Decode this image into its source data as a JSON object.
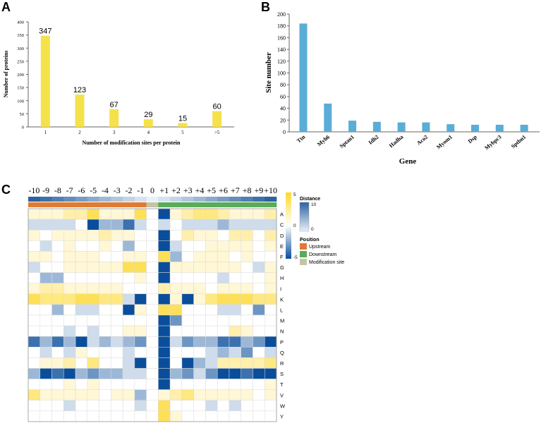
{
  "panels": {
    "a_letter": "A",
    "b_letter": "B",
    "c_letter": "C"
  },
  "chart_data": [
    {
      "type": "bar",
      "panel": "A",
      "title": "",
      "xlabel": "Number of modification sites per protein",
      "ylabel": "Number of proteins",
      "categories": [
        "1",
        "2",
        "3",
        "4",
        "5",
        ">5"
      ],
      "values": [
        347,
        123,
        67,
        29,
        15,
        60
      ],
      "ylim": [
        0,
        400
      ],
      "yticks": [
        0,
        50,
        100,
        150,
        200,
        250,
        300,
        350,
        400
      ],
      "data_labels": true,
      "grid": false,
      "color": "#f5e14a"
    },
    {
      "type": "bar",
      "panel": "B",
      "title": "",
      "xlabel": "Gene",
      "ylabel": "Site number",
      "categories": [
        "Ttn",
        "Myh6",
        "Sptan1",
        "Idh2",
        "Hadha",
        "Aco2",
        "Myom1",
        "Dsp",
        "Mybpc3",
        "Sptbn1"
      ],
      "values": [
        184,
        48,
        19,
        17,
        16,
        16,
        13,
        12,
        12,
        12
      ],
      "ylim": [
        0,
        200
      ],
      "yticks": [
        0,
        20,
        40,
        60,
        80,
        100,
        120,
        140,
        160,
        180,
        200
      ],
      "grid": false,
      "color": "#5aadd6"
    },
    {
      "type": "heatmap",
      "panel": "C",
      "columns": [
        "-10",
        "-9",
        "-8",
        "-7",
        "-6",
        "-5",
        "-4",
        "-3",
        "-2",
        "-1",
        "0",
        "+1",
        "+2",
        "+3",
        "+4",
        "+5",
        "+6",
        "+7",
        "+8",
        "+9",
        "+10"
      ],
      "rows": [
        "A",
        "C",
        "D",
        "E",
        "F",
        "G",
        "H",
        "I",
        "K",
        "L",
        "M",
        "N",
        "P",
        "Q",
        "R",
        "S",
        "T",
        "V",
        "W",
        "Y"
      ],
      "values": [
        [
          1,
          1,
          1,
          2,
          2,
          4,
          1,
          1,
          1,
          4,
          0,
          -5,
          1,
          2,
          3,
          3,
          2,
          1,
          1,
          1,
          2
        ],
        [
          -1,
          -1,
          -1,
          -1,
          0,
          -5,
          -2,
          -2,
          -4,
          -1,
          0,
          -1,
          0,
          -1,
          -1,
          -1,
          -2,
          -1,
          -1,
          -1,
          -1
        ],
        [
          1,
          0,
          1,
          1,
          1,
          1,
          2,
          1,
          1,
          0,
          0,
          -5,
          0,
          2,
          1,
          1,
          0,
          2,
          2,
          0,
          2
        ],
        [
          0,
          -1,
          0,
          1,
          0,
          0,
          1,
          0,
          -2,
          0,
          0,
          -5,
          -1,
          0,
          0,
          1,
          1,
          1,
          1,
          0,
          1
        ],
        [
          1,
          1,
          0,
          1,
          1,
          1,
          0,
          0,
          1,
          1,
          0,
          4,
          -2,
          0,
          1,
          1,
          1,
          0,
          1,
          0,
          0
        ],
        [
          -1,
          0,
          0,
          1,
          1,
          1,
          1,
          1,
          4,
          4,
          0,
          -5,
          1,
          1,
          1,
          1,
          1,
          1,
          0,
          -1,
          1
        ],
        [
          0,
          -2,
          -2,
          0,
          0,
          0,
          0,
          0,
          0,
          1,
          0,
          -5,
          0,
          0,
          0,
          0,
          -1,
          0,
          0,
          0,
          1
        ],
        [
          1,
          2,
          2,
          1,
          1,
          1,
          1,
          1,
          0,
          0,
          0,
          2,
          1,
          1,
          1,
          0,
          1,
          1,
          1,
          0,
          1
        ],
        [
          4,
          3,
          3,
          3,
          4,
          4,
          3,
          3,
          -1,
          -5,
          0,
          -5,
          1,
          -5,
          1,
          3,
          4,
          4,
          4,
          3,
          3
        ],
        [
          0,
          0,
          -2,
          0,
          -1,
          -1,
          0,
          0,
          -5,
          1,
          0,
          4,
          4,
          0,
          0,
          0,
          -1,
          -1,
          0,
          -3,
          0
        ],
        [
          0,
          0,
          0,
          0,
          0,
          0,
          0,
          0,
          0,
          0,
          0,
          -5,
          -3,
          0,
          0,
          0,
          0,
          0,
          0,
          0,
          0
        ],
        [
          0,
          0,
          0,
          -1,
          0,
          -1,
          0,
          0,
          1,
          1,
          0,
          -5,
          0,
          0,
          0,
          0,
          0,
          2,
          1,
          0,
          0
        ],
        [
          -4,
          -2,
          -4,
          -2,
          -5,
          -1,
          -2,
          -1,
          -2,
          -3,
          0,
          -5,
          -1,
          -3,
          -2,
          -2,
          -4,
          -4,
          -2,
          -3,
          -5
        ],
        [
          0,
          -1,
          0,
          -1,
          1,
          0,
          0,
          0,
          -1,
          0,
          0,
          -5,
          0,
          0,
          0,
          -1,
          -2,
          -1,
          -3,
          0,
          -1
        ],
        [
          0,
          1,
          1,
          2,
          0,
          3,
          0,
          0,
          -1,
          -5,
          0,
          -5,
          0,
          -5,
          -2,
          -1,
          2,
          2,
          2,
          2,
          3
        ],
        [
          -2,
          -5,
          -4,
          -5,
          -2,
          -3,
          -2,
          -2,
          -1,
          -1,
          0,
          -5,
          -2,
          -3,
          -1,
          -3,
          -5,
          -5,
          -4,
          -5,
          -5
        ],
        [
          0,
          0,
          0,
          1,
          0,
          1,
          0,
          0,
          0,
          0,
          0,
          -5,
          0,
          0,
          0,
          0,
          0,
          0,
          0,
          0,
          1
        ],
        [
          3,
          1,
          1,
          1,
          1,
          1,
          0,
          1,
          1,
          -2,
          0,
          1,
          2,
          3,
          1,
          1,
          1,
          1,
          1,
          0,
          1
        ],
        [
          0,
          0,
          0,
          -1,
          0,
          0,
          0,
          0,
          0,
          -1,
          0,
          4,
          0,
          0,
          0,
          -1,
          0,
          -1,
          0,
          0,
          0
        ],
        [
          0,
          0,
          0,
          0,
          0,
          0,
          0,
          0,
          0,
          0,
          0,
          4,
          1,
          0,
          0,
          0,
          0,
          0,
          0,
          0,
          0
        ]
      ],
      "position_bar": [
        "up",
        "up",
        "up",
        "up",
        "up",
        "up",
        "up",
        "up",
        "up",
        "up",
        "site",
        "down",
        "down",
        "down",
        "down",
        "down",
        "down",
        "down",
        "down",
        "down",
        "down"
      ],
      "distance_bar": [
        10,
        9,
        8,
        7,
        6,
        5,
        4,
        3,
        2,
        1,
        0,
        1,
        2,
        3,
        4,
        5,
        6,
        7,
        8,
        9,
        10
      ],
      "colorscale": {
        "low": "#0a4e9b",
        "mid": "#ffffff",
        "high": "#fed82c",
        "min": -5,
        "max": 5
      },
      "legend": {
        "value_ticks": [
          "5",
          "0",
          "-5"
        ],
        "distance_title": "Distance",
        "distance_ticks": [
          "10",
          "0"
        ],
        "position_title": "Position",
        "position_items": [
          {
            "label": "Upstream",
            "color": "#e07b33"
          },
          {
            "label": "Downstream",
            "color": "#5aab5a"
          },
          {
            "label": "Modification site",
            "color": "#c4c4a6"
          }
        ]
      }
    }
  ]
}
